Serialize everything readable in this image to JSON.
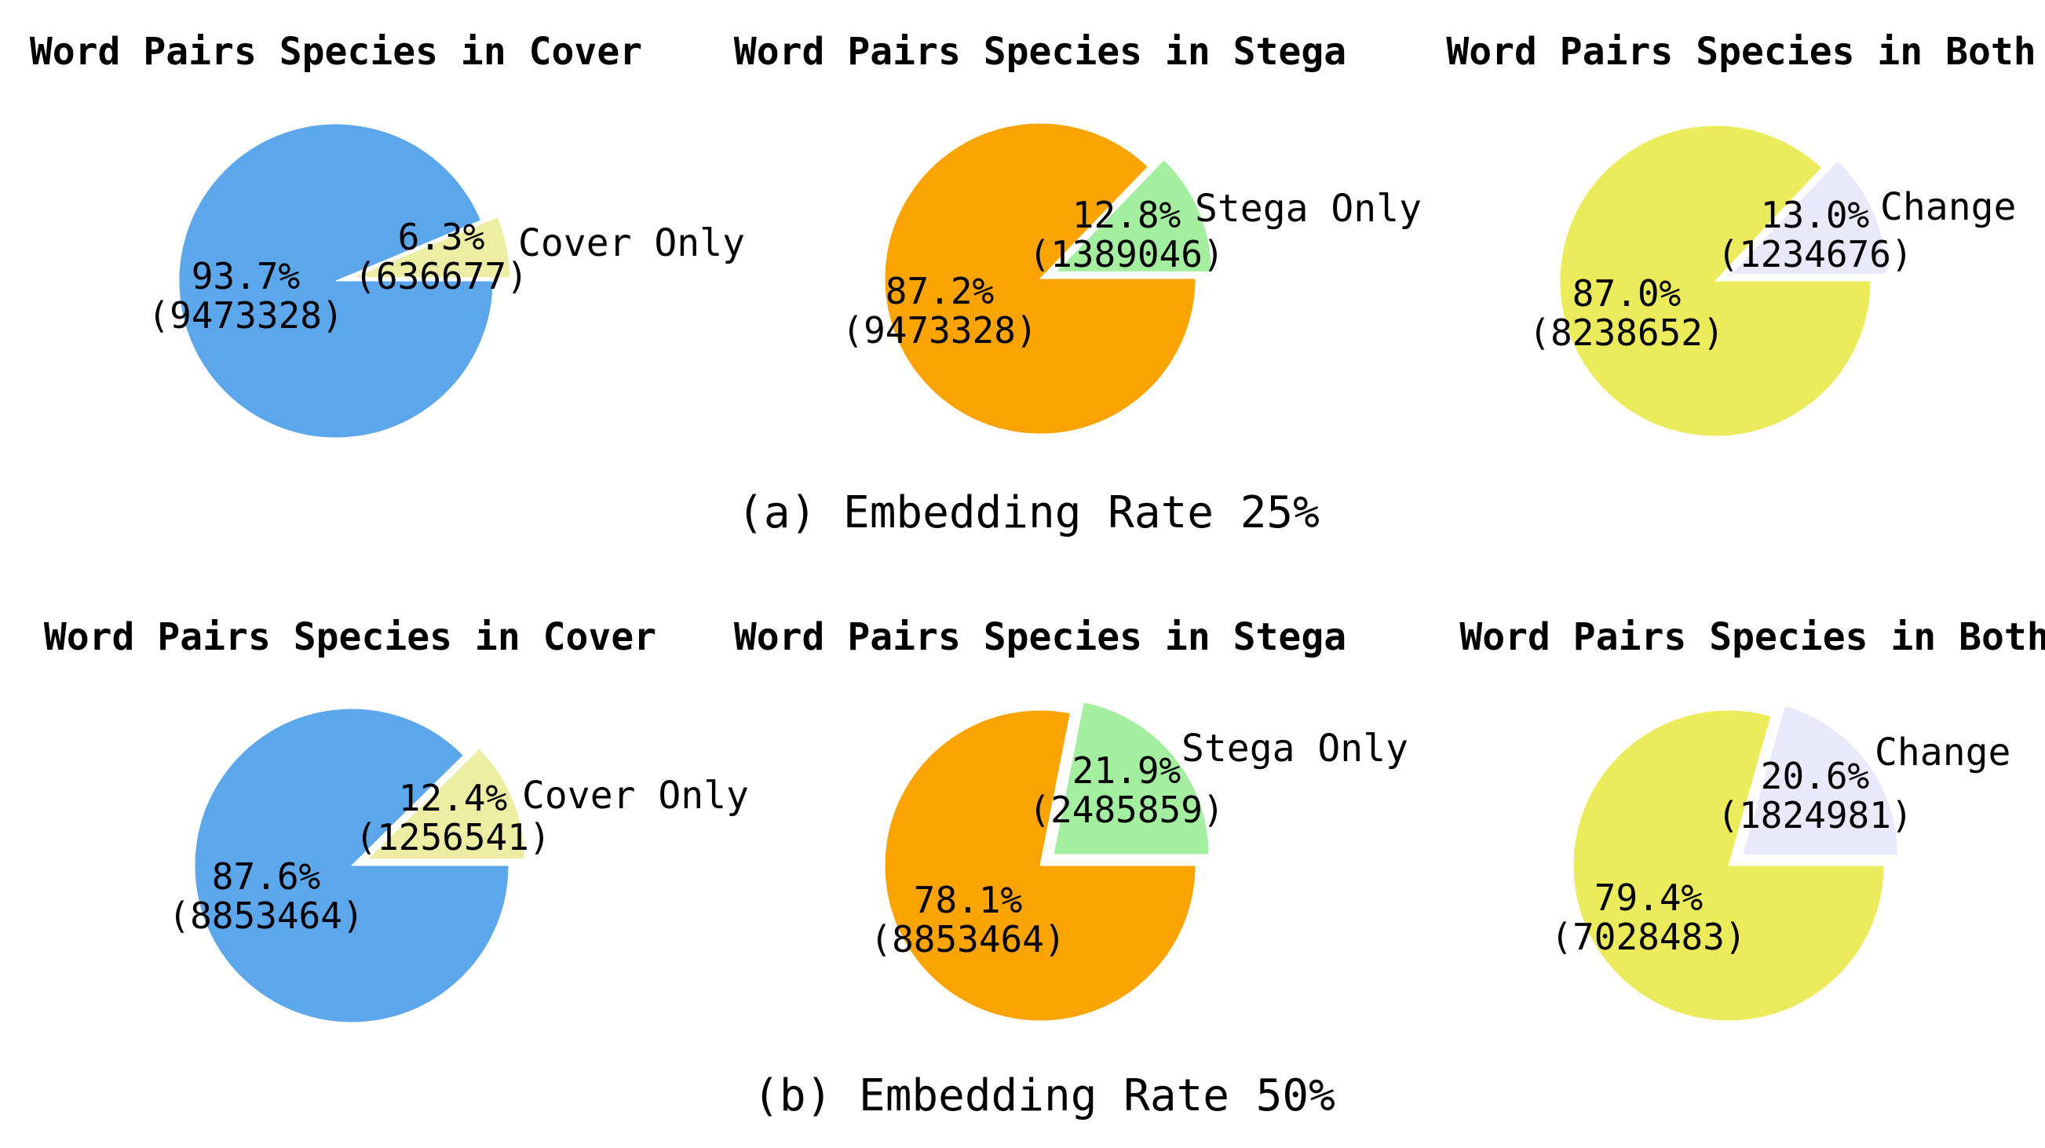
{
  "rows": [
    {
      "caption": "(a)  Embedding Rate 25%",
      "charts": [
        {
          "title": "Word Pairs Species in Cover",
          "slices": [
            {
              "pct": "93.7%",
              "count": "(9473328)",
              "value": 93.7,
              "color": "#5ca6ec",
              "label": ""
            },
            {
              "pct": "6.3%",
              "count": "(636677)",
              "value": 6.3,
              "color": "#edeea4",
              "label": "Cover Only"
            }
          ]
        },
        {
          "title": "Word Pairs Species in Stega",
          "slices": [
            {
              "pct": "87.2%",
              "count": "(9473328)",
              "value": 87.2,
              "color": "#fba300",
              "label": ""
            },
            {
              "pct": "12.8%",
              "count": "(1389046)",
              "value": 12.8,
              "color": "#a4eea0",
              "label": "Stega Only"
            }
          ]
        },
        {
          "title": "Word Pairs Species in Both",
          "slices": [
            {
              "pct": "87.0%",
              "count": "(8238652)",
              "value": 87.0,
              "color": "#ebeb5c",
              "label": ""
            },
            {
              "pct": "13.0%",
              "count": "(1234676)",
              "value": 13.0,
              "color": "#eae9fb",
              "label": "Change"
            }
          ]
        }
      ]
    },
    {
      "caption": "(b)  Embedding Rate 50%",
      "charts": [
        {
          "title": "Word Pairs Species in Cover",
          "slices": [
            {
              "pct": "87.6%",
              "count": "(8853464)",
              "value": 87.6,
              "color": "#5ca6ec",
              "label": ""
            },
            {
              "pct": "12.4%",
              "count": "(1256541)",
              "value": 12.4,
              "color": "#edeea4",
              "label": "Cover Only"
            }
          ]
        },
        {
          "title": "Word Pairs Species in Stega",
          "slices": [
            {
              "pct": "78.1%",
              "count": "(8853464)",
              "value": 78.1,
              "color": "#fba300",
              "label": ""
            },
            {
              "pct": "21.9%",
              "count": "(2485859)",
              "value": 21.9,
              "color": "#a4eea0",
              "label": "Stega Only"
            }
          ]
        },
        {
          "title": "Word Pairs Species in Both",
          "slices": [
            {
              "pct": "79.4%",
              "count": "(7028483)",
              "value": 79.4,
              "color": "#ebeb5c",
              "label": ""
            },
            {
              "pct": "20.6%",
              "count": "(1824981)",
              "value": 20.6,
              "color": "#eae9fb",
              "label": "Change"
            }
          ]
        }
      ]
    }
  ],
  "chart_data": [
    {
      "type": "pie",
      "title": "Word Pairs Species in Cover",
      "categories": [
        "",
        "Cover Only"
      ],
      "values": [
        9473328,
        636677
      ],
      "percentages": [
        93.7,
        6.3
      ]
    },
    {
      "type": "pie",
      "title": "Word Pairs Species in Stega",
      "categories": [
        "",
        "Stega Only"
      ],
      "values": [
        9473328,
        1389046
      ],
      "percentages": [
        87.2,
        12.8
      ]
    },
    {
      "type": "pie",
      "title": "Word Pairs Species in Both",
      "categories": [
        "",
        "Change"
      ],
      "values": [
        8238652,
        1234676
      ],
      "percentages": [
        87.0,
        13.0
      ]
    },
    {
      "type": "pie",
      "title": "Word Pairs Species in Cover",
      "categories": [
        "",
        "Cover Only"
      ],
      "values": [
        8853464,
        1256541
      ],
      "percentages": [
        87.6,
        12.4
      ]
    },
    {
      "type": "pie",
      "title": "Word Pairs Species in Stega",
      "categories": [
        "",
        "Stega Only"
      ],
      "values": [
        8853464,
        2485859
      ],
      "percentages": [
        78.1,
        21.9
      ]
    },
    {
      "type": "pie",
      "title": "Word Pairs Species in Both",
      "categories": [
        "",
        "Change"
      ],
      "values": [
        7028483,
        1824981
      ],
      "percentages": [
        79.4,
        20.6
      ]
    }
  ]
}
